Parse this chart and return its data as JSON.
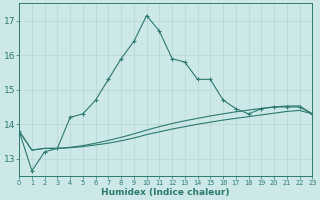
{
  "xlabel": "Humidex (Indice chaleur)",
  "x": [
    0,
    1,
    2,
    3,
    4,
    5,
    6,
    7,
    8,
    9,
    10,
    11,
    12,
    13,
    14,
    15,
    16,
    17,
    18,
    19,
    20,
    21,
    22,
    23
  ],
  "line1": [
    13.8,
    12.65,
    13.2,
    13.3,
    14.2,
    14.3,
    14.7,
    15.3,
    15.9,
    16.4,
    17.15,
    16.7,
    15.9,
    15.8,
    15.3,
    15.3,
    14.7,
    14.45,
    14.3,
    14.45,
    14.5,
    14.5,
    14.5,
    14.3
  ],
  "line2": [
    13.8,
    13.25,
    13.3,
    13.3,
    13.32,
    13.35,
    13.4,
    13.45,
    13.52,
    13.6,
    13.7,
    13.78,
    13.86,
    13.93,
    14.0,
    14.06,
    14.12,
    14.17,
    14.22,
    14.27,
    14.32,
    14.37,
    14.4,
    14.3
  ],
  "line3": [
    13.8,
    13.25,
    13.3,
    13.3,
    13.33,
    13.38,
    13.45,
    13.53,
    13.62,
    13.72,
    13.83,
    13.93,
    14.02,
    14.1,
    14.17,
    14.24,
    14.3,
    14.36,
    14.41,
    14.46,
    14.5,
    14.53,
    14.53,
    14.3
  ],
  "line_color": "#2d7a6e",
  "bg_color": "#cce8e8",
  "grid_color": "#b8d4d4",
  "ylim": [
    12.5,
    17.5
  ],
  "yticks": [
    13,
    14,
    15,
    16,
    17
  ],
  "xlim": [
    0,
    23
  ]
}
